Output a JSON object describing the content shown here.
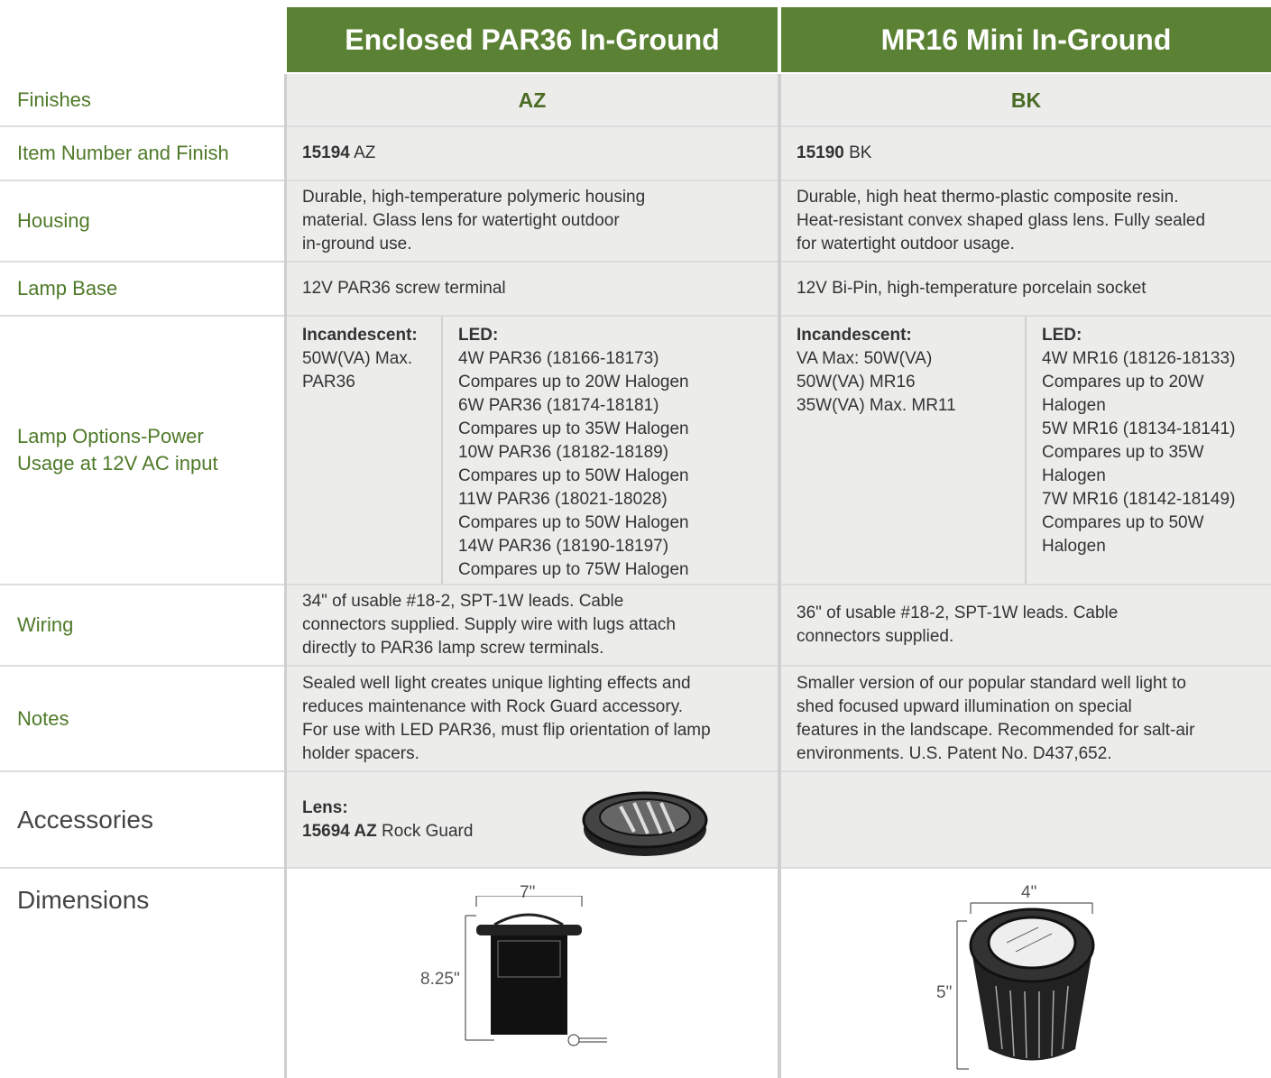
{
  "header": {
    "columns": [
      "Enclosed PAR36 In-Ground",
      "MR16 Mini In-Ground"
    ]
  },
  "rows": {
    "finishes": {
      "label": "Finishes",
      "values": [
        "AZ",
        "BK"
      ]
    },
    "item_number": {
      "label": "Item Number and Finish",
      "values": [
        {
          "number": "15194",
          "finish": "AZ"
        },
        {
          "number": "15190",
          "finish": "BK"
        }
      ]
    },
    "housing": {
      "label": "Housing",
      "values": [
        [
          "Durable, high-temperature polymeric housing",
          "material. Glass lens for watertight outdoor",
          "in-ground use."
        ],
        [
          "Durable, high heat thermo-plastic composite resin.",
          "Heat-resistant convex shaped glass lens. Fully sealed",
          "for watertight outdoor usage."
        ]
      ]
    },
    "lamp_base": {
      "label": "Lamp Base",
      "values": [
        "12V PAR36 screw terminal",
        "12V Bi-Pin, high-temperature porcelain socket"
      ]
    },
    "lamp_options": {
      "label": [
        "Lamp Options-Power",
        "Usage at 12V AC input"
      ],
      "values": [
        {
          "incandescent": {
            "heading": "Incandescent:",
            "lines": [
              "50W(VA) Max.",
              "PAR36"
            ]
          },
          "led": {
            "heading": "LED:",
            "lines": [
              "4W PAR36 (18166-18173)",
              "Compares up to 20W Halogen",
              "6W PAR36 (18174-18181)",
              "Compares up to 35W Halogen",
              "10W PAR36 (18182-18189)",
              "Compares up to 50W Halogen",
              "11W PAR36 (18021-18028)",
              "Compares up to 50W Halogen",
              "14W PAR36 (18190-18197)",
              "Compares up to 75W Halogen"
            ]
          }
        },
        {
          "incandescent": {
            "heading": "Incandescent:",
            "lines": [
              "VA Max: 50W(VA)",
              "50W(VA) MR16",
              "35W(VA) Max. MR11"
            ]
          },
          "led": {
            "heading": "LED:",
            "lines": [
              "4W MR16 (18126-18133)",
              "Compares up to 20W",
              "Halogen",
              "5W MR16 (18134-18141)",
              "Compares up to 35W",
              "Halogen",
              "7W MR16 (18142-18149)",
              "Compares up to 50W",
              "Halogen"
            ]
          }
        }
      ]
    },
    "wiring": {
      "label": "Wiring",
      "values": [
        [
          "34\" of usable #18-2, SPT-1W leads. Cable",
          "connectors supplied. Supply wire with lugs attach",
          "directly to PAR36 lamp screw terminals."
        ],
        [
          "36\" of usable #18-2, SPT-1W leads. Cable",
          "connectors supplied."
        ]
      ]
    },
    "notes": {
      "label": "Notes",
      "values": [
        [
          "Sealed well light creates unique lighting effects and",
          "reduces maintenance with Rock Guard accessory.",
          "For use with LED PAR36, must flip orientation of lamp",
          "holder spacers."
        ],
        [
          "Smaller version of our popular standard well light to",
          "shed focused upward illumination on special",
          "features in the landscape. Recommended for salt-air",
          "environments. U.S. Patent No. D437,652."
        ]
      ]
    },
    "accessories": {
      "label": "Accessories",
      "values": [
        {
          "heading": "Lens:",
          "number": "15694 AZ",
          "name": "Rock Guard"
        }
      ]
    },
    "dimensions": {
      "label": "Dimensions",
      "values": [
        {
          "width": "7\"",
          "height": "8.25\""
        },
        {
          "width": "4\"",
          "height": "5\""
        }
      ]
    }
  }
}
